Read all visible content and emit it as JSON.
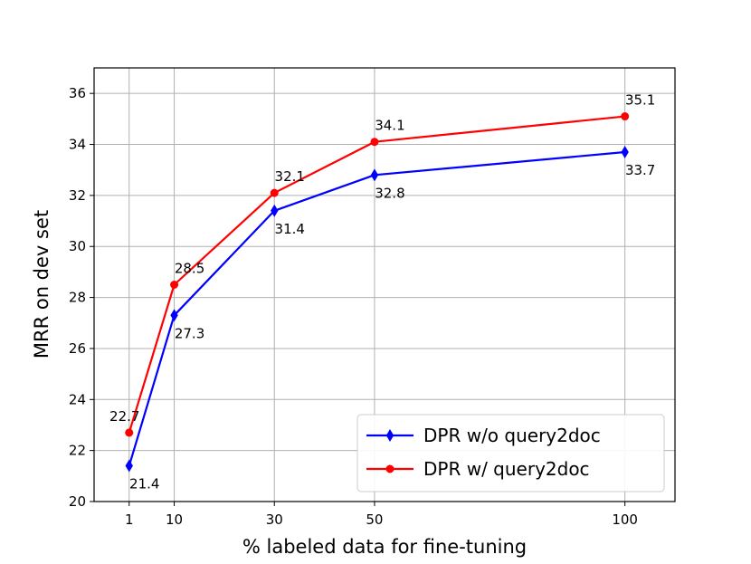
{
  "chart_data": {
    "type": "line",
    "title": "",
    "xlabel": "% labeled data for fine-tuning",
    "ylabel": "MRR on dev set",
    "x": [
      1,
      10,
      30,
      50,
      100
    ],
    "x_tick_labels": [
      "1",
      "10",
      "30",
      "50",
      "100"
    ],
    "xlim": [
      -6,
      110
    ],
    "ylim": [
      20,
      37
    ],
    "y_ticks": [
      20,
      22,
      24,
      26,
      28,
      30,
      32,
      34,
      36
    ],
    "grid": true,
    "legend_position": "lower-right",
    "series": [
      {
        "name": "DPR w/o query2doc",
        "color": "#0000ff",
        "marker": "diamond",
        "values": [
          21.4,
          27.3,
          31.4,
          32.8,
          33.7
        ],
        "labels": [
          "21.4",
          "27.3",
          "31.4",
          "32.8",
          "33.7"
        ],
        "label_position": "below"
      },
      {
        "name": "DPR w/ query2doc",
        "color": "#ff0000",
        "marker": "circle",
        "values": [
          22.7,
          28.5,
          32.1,
          34.1,
          35.1
        ],
        "labels": [
          "22.7",
          "28.5",
          "32.1",
          "34.1",
          "35.1"
        ],
        "label_position": "above"
      }
    ]
  }
}
